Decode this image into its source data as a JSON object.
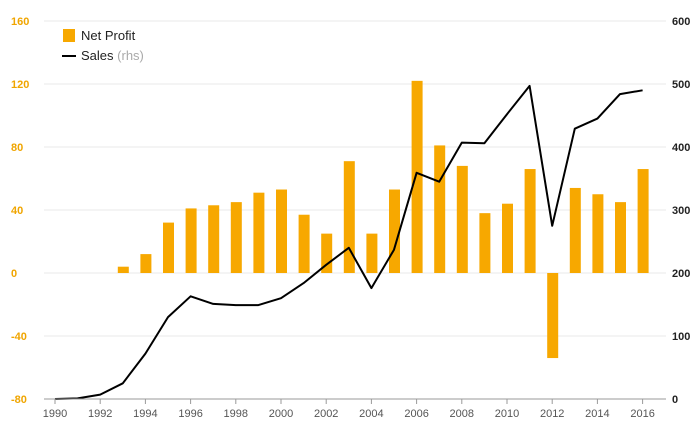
{
  "chart_data": {
    "type": "bar",
    "x": [
      1990,
      1991,
      1992,
      1993,
      1994,
      1995,
      1996,
      1997,
      1998,
      1999,
      2000,
      2001,
      2002,
      2003,
      2004,
      2005,
      2006,
      2007,
      2008,
      2009,
      2010,
      2011,
      2012,
      2013,
      2014,
      2015,
      2016
    ],
    "x_tick_labels": [
      "1990",
      "1992",
      "1994",
      "1996",
      "1998",
      "2000",
      "2002",
      "2004",
      "2006",
      "2008",
      "2010",
      "2012",
      "2014",
      "2016"
    ],
    "x_tick_values": [
      1990,
      1992,
      1994,
      1996,
      1998,
      2000,
      2002,
      2004,
      2006,
      2008,
      2010,
      2012,
      2014,
      2016
    ],
    "series": [
      {
        "name": "Net Profit",
        "kind": "bar",
        "axis": "left",
        "color": "#f7a800",
        "values": [
          null,
          null,
          null,
          4,
          12,
          32,
          41,
          43,
          45,
          51,
          53,
          37,
          25,
          71,
          25,
          53,
          122,
          81,
          68,
          38,
          44,
          66,
          -54,
          54,
          50,
          45,
          66
        ]
      },
      {
        "name": "Sales",
        "name_suffix": "(rhs)",
        "kind": "line",
        "axis": "right",
        "color": "#000000",
        "values": [
          0,
          1,
          7,
          25,
          72,
          130,
          163,
          151,
          149,
          149,
          160,
          184,
          213,
          240,
          176,
          237,
          359,
          345,
          407,
          406,
          452,
          497,
          275,
          429,
          445,
          484,
          490
        ]
      }
    ],
    "y_left": {
      "ylim": [
        -80,
        160
      ],
      "ticks": [
        "-80",
        "-40",
        "0",
        "40",
        "80",
        "120",
        "160"
      ],
      "tick_values": [
        -80,
        -40,
        0,
        40,
        80,
        120,
        160
      ],
      "color": "#f0a500"
    },
    "y_right": {
      "ylim": [
        0,
        600
      ],
      "ticks": [
        "0",
        "100",
        "200",
        "300",
        "400",
        "500",
        "600"
      ],
      "tick_values": [
        0,
        100,
        200,
        300,
        400,
        500,
        600
      ],
      "color": "#222222"
    },
    "grid": true,
    "legend_position": "top-left",
    "title": "",
    "xlabel": "",
    "ylabel": ""
  }
}
